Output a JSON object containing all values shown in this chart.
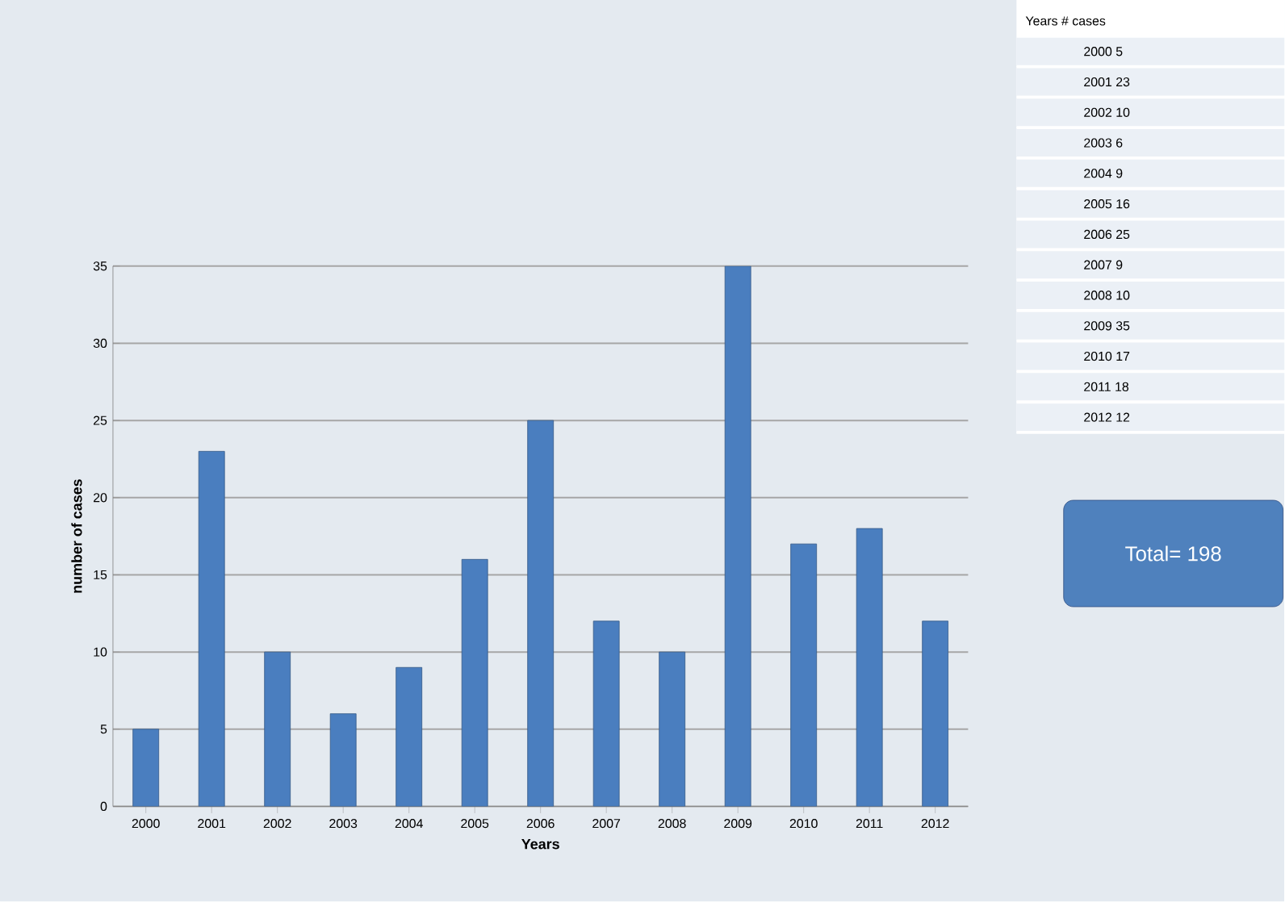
{
  "chart_data": [
    {
      "type": "bar",
      "categories": [
        "2000",
        "2001",
        "2002",
        "2003",
        "2004",
        "2005",
        "2006",
        "2007",
        "2008",
        "2009",
        "2010",
        "2011",
        "2012"
      ],
      "values": [
        5,
        23,
        10,
        6,
        9,
        16,
        25,
        12,
        10,
        35,
        17,
        18,
        12
      ],
      "color": "#4a7ebf",
      "xlabel": "Years",
      "ylabel": "number of cases",
      "ylim": [
        0,
        35
      ],
      "yticks": [
        0,
        5,
        10,
        15,
        20,
        25,
        30,
        35
      ],
      "grid": "y"
    },
    {
      "type": "other",
      "annotations": [
        "Years   # cases",
        "2000   5",
        "2001   23",
        "2002   10",
        "2003   6",
        "2004   9",
        "2005   16",
        "2006   25",
        "2007   9",
        "2008   10",
        "2009   35",
        "2010   17",
        "2011   18",
        "2012   12",
        "Total= 198"
      ]
    }
  ]
}
